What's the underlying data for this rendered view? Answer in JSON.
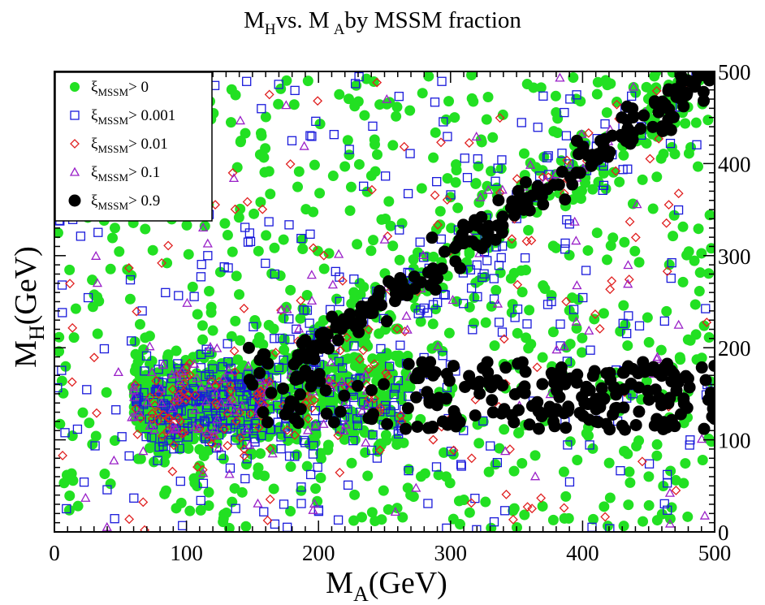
{
  "chart_data": {
    "type": "scatter",
    "title": {
      "m": "M",
      "h_sub": "H",
      "vs": "vs. M",
      "a_sub": "A",
      "rest": "by MSSM fraction"
    },
    "xlabel": {
      "main": "M",
      "sub": "A",
      "unit": "(GeV)"
    },
    "ylabel": {
      "main": "M",
      "sub": "H",
      "unit": "(GeV)"
    },
    "xlim": [
      0,
      500
    ],
    "ylim": [
      0,
      500
    ],
    "xticks": [
      "0",
      "100",
      "200",
      "300",
      "400",
      "500"
    ],
    "yticks": [
      "0",
      "100",
      "200",
      "300",
      "400",
      "500"
    ],
    "legend_position": "top-left",
    "series": [
      {
        "name": "ξ_MSSM> 0",
        "label_main": "ξ",
        "label_sub": "MSSM",
        "label_rest": "> 0",
        "marker": "circle-filled",
        "color": "#22e022",
        "count": 1500,
        "regions": "broad"
      },
      {
        "name": "ξ_MSSM> 0.001",
        "label_main": "ξ",
        "label_sub": "MSSM",
        "label_rest": "> 0.001",
        "marker": "square-open",
        "color": "#1a1adb",
        "count": 600,
        "regions": "broad"
      },
      {
        "name": "ξ_MSSM> 0.01",
        "label_main": "ξ",
        "label_sub": "MSSM",
        "label_rest": "> 0.01",
        "marker": "diamond-open",
        "color": "#e02020",
        "count": 230,
        "regions": "broad"
      },
      {
        "name": "ξ_MSSM> 0.1",
        "label_main": "ξ",
        "label_sub": "MSSM",
        "label_rest": "> 0.1",
        "marker": "triangle-open",
        "color": "#9a20c8",
        "count": 180,
        "regions": "broad"
      },
      {
        "name": "ξ_MSSM> 0.9",
        "label_main": "ξ",
        "label_sub": "MSSM",
        "label_rest": "> 0.9",
        "marker": "circle-filled",
        "color": "#000000",
        "count": 430,
        "regions": "diagonal+band"
      }
    ]
  }
}
